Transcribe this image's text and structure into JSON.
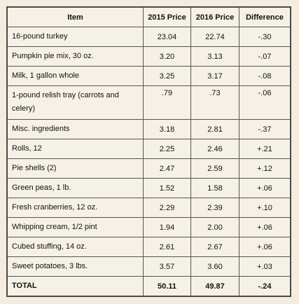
{
  "table": {
    "header": [
      "Item",
      "2015 Price",
      "2016 Price",
      "Difference"
    ],
    "rows": [
      [
        "16-pound turkey",
        "23.04",
        "22.74",
        "-.30"
      ],
      [
        "Pumpkin pie mix, 30 oz.",
        "3.20",
        "3.13",
        "-.07"
      ],
      [
        "Milk, 1 gallon whole",
        "3.25",
        "3.17",
        "-.08"
      ],
      [
        "1-pound relish tray (carrots and celery)",
        ".79",
        ".73",
        "-.06"
      ],
      [
        "Misc. ingredients",
        "3.18",
        "2.81",
        "-.37"
      ],
      [
        "Rolls, 12",
        "2.25",
        "2.46",
        "+.21"
      ],
      [
        "Pie shells (2)",
        "2.47",
        "2.59",
        "+.12"
      ],
      [
        "Green peas, 1 lb.",
        "1.52",
        "1.58",
        "+.06"
      ],
      [
        "Fresh cranberries, 12 oz.",
        "2.29",
        "2.39",
        "+.10"
      ],
      [
        "Whipping cream, 1/2 pint",
        "1.94",
        "2.00",
        "+.06"
      ],
      [
        "Cubed stuffing, 14 oz.",
        "2.61",
        "2.67",
        "+.06"
      ],
      [
        "Sweet potatoes, 3 lbs.",
        "3.57",
        "3.60",
        "+.03"
      ],
      [
        "TOTAL",
        "50.11",
        "49.87",
        "-.24"
      ]
    ]
  }
}
